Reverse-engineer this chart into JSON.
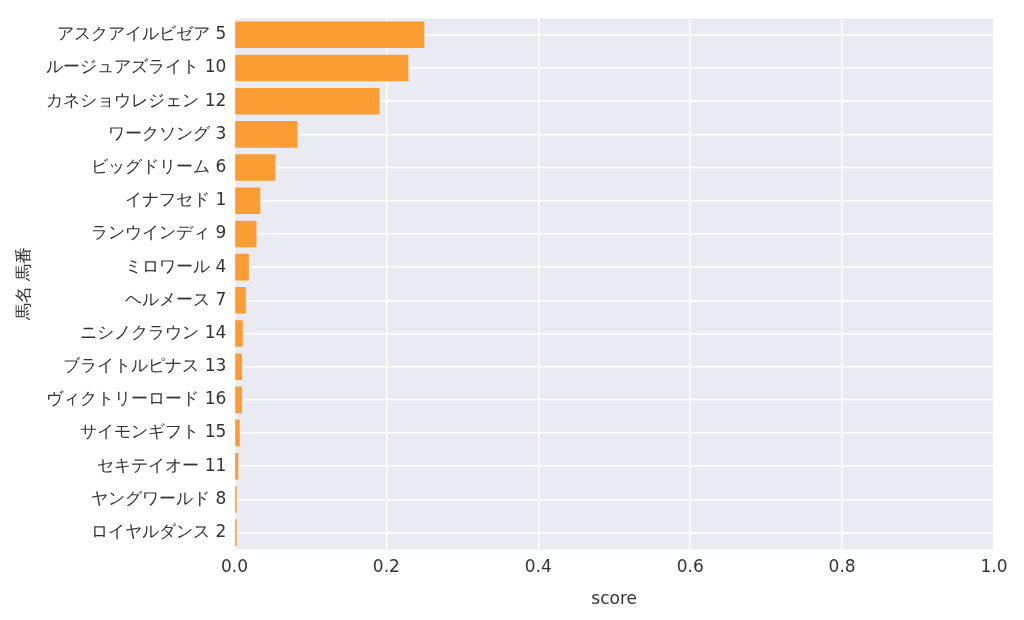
{
  "chart_data": {
    "type": "bar",
    "orientation": "horizontal",
    "xlabel": "score",
    "ylabel": "馬名 馬番",
    "categories": [
      "アスクアイルビゼア 5",
      "ルージュアズライト 10",
      "カネショウレジェン 12",
      "ワークソング 3",
      "ビッグドリーム 6",
      "イナフセド 1",
      "ランウインディ 9",
      "ミロワール 4",
      "ヘルメース 7",
      "ニシノクラウン 14",
      "ブライトルピナス 13",
      "ヴィクトリーロード 16",
      "サイモンギフト 15",
      "セキテイオー 11",
      "ヤングワールド 8",
      "ロイヤルダンス 2"
    ],
    "values": [
      0.25,
      0.229,
      0.191,
      0.083,
      0.054,
      0.034,
      0.029,
      0.019,
      0.015,
      0.011,
      0.01,
      0.01,
      0.007,
      0.005,
      0.003,
      0.003
    ],
    "color": "#fb9d33",
    "xlim": [
      0,
      1
    ],
    "xticks": [
      {
        "value": 0,
        "label": "0.0"
      },
      {
        "value": 0.2,
        "label": "0.2"
      },
      {
        "value": 0.4,
        "label": "0.4"
      },
      {
        "value": 0.6,
        "label": "0.6"
      },
      {
        "value": 0.8,
        "label": "0.8"
      },
      {
        "value": 1,
        "label": "1.0"
      }
    ],
    "grid": true,
    "legend": false
  }
}
